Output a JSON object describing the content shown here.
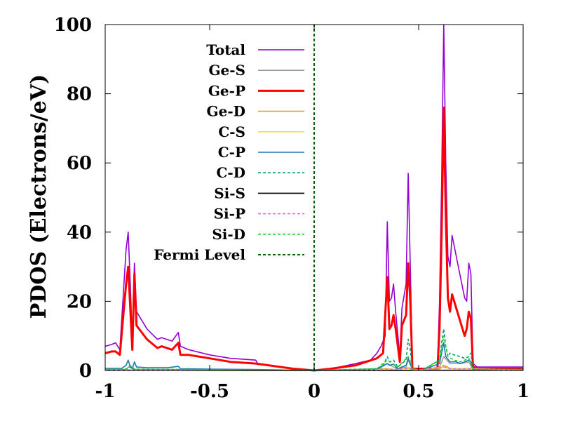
{
  "chart_data": {
    "type": "line",
    "title": "",
    "xlabel": "",
    "ylabel": "PDOS (Electrons/eV)",
    "xlim": [
      -1,
      1
    ],
    "ylim": [
      0,
      100
    ],
    "xticks": [
      {
        "value": -1,
        "label": "-1"
      },
      {
        "value": -0.5,
        "label": "-0.5"
      },
      {
        "value": 0,
        "label": "0"
      },
      {
        "value": 0.5,
        "label": "0.5"
      },
      {
        "value": 1,
        "label": "1"
      }
    ],
    "yticks": [
      {
        "value": 0,
        "label": "0"
      },
      {
        "value": 20,
        "label": "20"
      },
      {
        "value": 40,
        "label": "40"
      },
      {
        "value": 60,
        "label": "60"
      },
      {
        "value": 80,
        "label": "80"
      },
      {
        "value": 100,
        "label": "100"
      }
    ],
    "legend_position": "top-left",
    "series": [
      {
        "name": "Total",
        "color": "#9400d3",
        "dash": "solid",
        "width": 1.6,
        "x": [
          -1,
          -0.97,
          -0.95,
          -0.93,
          -0.9,
          -0.89,
          -0.88,
          -0.87,
          -0.86,
          -0.85,
          -0.8,
          -0.75,
          -0.73,
          -0.68,
          -0.65,
          -0.64,
          -0.6,
          -0.5,
          -0.4,
          -0.28,
          -0.27,
          -0.1,
          0,
          0.08,
          0.2,
          0.27,
          0.3,
          0.32,
          0.34,
          0.35,
          0.36,
          0.37,
          0.38,
          0.39,
          0.41,
          0.42,
          0.44,
          0.45,
          0.46,
          0.47,
          0.48,
          0.5,
          0.52,
          0.59,
          0.6,
          0.61,
          0.62,
          0.63,
          0.64,
          0.65,
          0.66,
          0.67,
          0.69,
          0.7,
          0.71,
          0.72,
          0.73,
          0.74,
          0.75,
          0.76,
          0.77,
          0.78,
          0.8,
          1
        ],
        "y": [
          7,
          7.5,
          8,
          6,
          35,
          40,
          25,
          8,
          31,
          17,
          12,
          9,
          9.5,
          8.5,
          11,
          7,
          6,
          4.5,
          3.5,
          3,
          2,
          0.5,
          0,
          0.5,
          2,
          3,
          5,
          7,
          10,
          43,
          20,
          21,
          25,
          17,
          4,
          18,
          25,
          57,
          30,
          0.5,
          0.5,
          0.5,
          0.5,
          0.5,
          20,
          55,
          100,
          60,
          33,
          30,
          39,
          36,
          30,
          27,
          24,
          21,
          20,
          31,
          28,
          2,
          1.5,
          1,
          1,
          1
        ]
      },
      {
        "name": "Ge-S",
        "color": "#a0a0a0",
        "dash": "solid",
        "width": 1.6,
        "x": [
          -1,
          -0.9,
          -0.88,
          -0.86,
          -0.7,
          -0.5,
          -0.3,
          0,
          0.3,
          0.35,
          0.38,
          0.4,
          0.44,
          0.45,
          0.47,
          0.52,
          0.6,
          0.62,
          0.65,
          0.7,
          0.74,
          0.76,
          1
        ],
        "y": [
          0.3,
          0.3,
          1.5,
          0.3,
          0.3,
          0.2,
          0.2,
          0,
          0.2,
          2,
          1,
          0.5,
          1,
          3,
          0.2,
          0.2,
          1,
          4,
          2,
          2,
          2.5,
          0.3,
          0.3
        ]
      },
      {
        "name": "Ge-P",
        "color": "#ff0000",
        "dash": "solid",
        "width": 3,
        "x": [
          -1,
          -0.97,
          -0.95,
          -0.93,
          -0.9,
          -0.89,
          -0.88,
          -0.87,
          -0.86,
          -0.85,
          -0.8,
          -0.75,
          -0.73,
          -0.68,
          -0.65,
          -0.64,
          -0.6,
          -0.5,
          -0.4,
          -0.28,
          -0.1,
          0,
          0.08,
          0.2,
          0.3,
          0.33,
          0.35,
          0.36,
          0.37,
          0.38,
          0.39,
          0.41,
          0.42,
          0.44,
          0.45,
          0.46,
          0.47,
          0.52,
          0.59,
          0.6,
          0.61,
          0.62,
          0.63,
          0.64,
          0.65,
          0.66,
          0.67,
          0.69,
          0.7,
          0.71,
          0.72,
          0.73,
          0.74,
          0.75,
          0.76,
          0.8,
          1
        ],
        "y": [
          5,
          5.5,
          5.5,
          4.5,
          25,
          30,
          18,
          6,
          28,
          13,
          9,
          6.5,
          7,
          6,
          8,
          4.5,
          4.5,
          3.5,
          2.5,
          2,
          0.5,
          0,
          0.5,
          1.5,
          3.5,
          5,
          27,
          12,
          13,
          16,
          12,
          2.5,
          13,
          16,
          31,
          20,
          0.5,
          0.5,
          0.5,
          12,
          40,
          76,
          45,
          21,
          17,
          22,
          20,
          16,
          14,
          12,
          10,
          12,
          17,
          15,
          1,
          0.5,
          0.5
        ]
      },
      {
        "name": "Ge-D",
        "color": "#daa520",
        "dash": "solid",
        "width": 1.6,
        "x": [
          -1,
          0,
          0.35,
          0.4,
          0.45,
          0.5,
          0.6,
          0.62,
          0.65,
          0.7,
          0.75,
          1
        ],
        "y": [
          0.1,
          0,
          0.5,
          0.2,
          0.8,
          0.1,
          0.4,
          1.5,
          0.6,
          0.5,
          0.6,
          0.1
        ]
      },
      {
        "name": "C-S",
        "color": "#f0e040",
        "dash": "solid",
        "width": 1.6,
        "x": [
          -1,
          0,
          0.35,
          0.45,
          0.5,
          0.62,
          0.65,
          0.7,
          0.75,
          1
        ],
        "y": [
          0.1,
          0,
          0.3,
          0.5,
          0.1,
          1,
          0.5,
          0.4,
          0.5,
          0.1
        ]
      },
      {
        "name": "C-P",
        "color": "#1f77b4",
        "dash": "solid",
        "width": 1.6,
        "x": [
          -1,
          -0.92,
          -0.9,
          -0.89,
          -0.88,
          -0.87,
          -0.86,
          -0.85,
          -0.8,
          -0.7,
          -0.65,
          -0.64,
          -0.5,
          -0.3,
          0,
          0.3,
          0.35,
          0.36,
          0.38,
          0.4,
          0.44,
          0.45,
          0.46,
          0.47,
          0.52,
          0.6,
          0.61,
          0.62,
          0.63,
          0.65,
          0.68,
          0.7,
          0.74,
          0.75,
          0.76,
          1
        ],
        "y": [
          0.6,
          0.6,
          1.5,
          3,
          1,
          0.5,
          2.5,
          1,
          0.8,
          0.8,
          1.2,
          0.5,
          0.4,
          0.3,
          0,
          0.3,
          2,
          1.5,
          1.8,
          0.5,
          1.5,
          3.5,
          2,
          0.2,
          0.2,
          2,
          5,
          8,
          4,
          2.5,
          2.5,
          2,
          3,
          2.5,
          0.3,
          0.3
        ]
      },
      {
        "name": "C-D",
        "color": "#009e73",
        "dash": "dashed",
        "width": 1.6,
        "x": [
          -1,
          -0.9,
          -0.88,
          -0.86,
          -0.5,
          0,
          0.3,
          0.33,
          0.35,
          0.36,
          0.38,
          0.4,
          0.42,
          0.44,
          0.45,
          0.46,
          0.47,
          0.52,
          0.6,
          0.61,
          0.62,
          0.63,
          0.64,
          0.65,
          0.67,
          0.7,
          0.72,
          0.74,
          0.75,
          0.76,
          1
        ],
        "y": [
          0.3,
          0.3,
          1,
          0.3,
          0.2,
          0,
          0.5,
          1.5,
          4,
          2.5,
          3,
          1,
          2,
          3,
          9,
          6,
          0.2,
          0.2,
          3,
          8,
          12,
          7,
          4,
          5,
          4.5,
          4,
          3.5,
          4,
          5,
          0.3,
          0.3
        ]
      },
      {
        "name": "Si-S",
        "color": "#000000",
        "dash": "solid",
        "width": 1.6,
        "x": [
          -1,
          0,
          1
        ],
        "y": [
          0.1,
          0,
          0.1
        ]
      },
      {
        "name": "Si-P",
        "color": "#e070e0",
        "dash": "dashed",
        "width": 1.6,
        "x": [
          -1,
          0,
          0.35,
          0.45,
          0.5,
          0.62,
          0.65,
          0.75,
          1
        ],
        "y": [
          0.2,
          0,
          0.3,
          0.5,
          0.1,
          1,
          0.5,
          0.5,
          0.1
        ]
      },
      {
        "name": "Si-D",
        "color": "#22cc22",
        "dash": "dashed",
        "width": 1.6,
        "x": [
          -1,
          -0.9,
          -0.88,
          -0.86,
          0,
          0.3,
          0.35,
          0.4,
          0.45,
          0.46,
          0.47,
          0.52,
          0.6,
          0.62,
          0.64,
          0.67,
          0.7,
          0.74,
          0.76,
          1
        ],
        "y": [
          0.4,
          0.4,
          1.5,
          0.4,
          0,
          0.5,
          3,
          1,
          4,
          2.5,
          0.2,
          0.2,
          3,
          10,
          4,
          3,
          2.5,
          3.5,
          0.3,
          0.3
        ]
      },
      {
        "name": "Fermi Level",
        "color": "#006400",
        "dash": "dashed",
        "width": 2,
        "x": [
          0,
          0
        ],
        "y": [
          0,
          100
        ]
      }
    ]
  }
}
